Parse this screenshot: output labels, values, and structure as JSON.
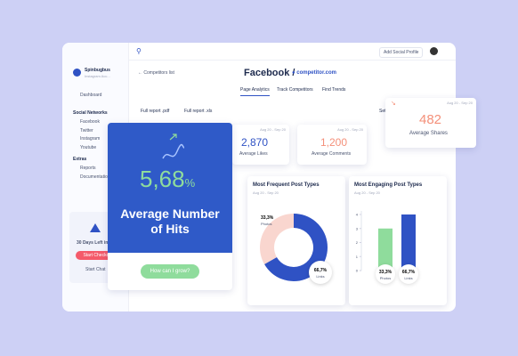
{
  "sidebar": {
    "brand": "Spinbugbus",
    "account": "Instagram Acc...",
    "dashboard": "Dashboard",
    "sections": [
      {
        "title": "Social Networks",
        "items": [
          "Facebook",
          "Twitter",
          "Instagram",
          "Youtube"
        ]
      },
      {
        "title": "Extras",
        "items": [
          "Reports",
          "Documentation"
        ]
      }
    ],
    "trial": "30 Days Left in T...",
    "checkout": "Start Checkout",
    "chat": "Start Chat"
  },
  "topbar": {
    "add_profile": "Add Social Profile"
  },
  "header": {
    "back": "Competitors list",
    "network": "Facebook /",
    "site": "competitor.com",
    "tabs": [
      "Page Analytics",
      "Track Competitors",
      "Find Trends"
    ]
  },
  "actions": [
    "Full report .pdf",
    "Full report .xls",
    "Set"
  ],
  "stats": [
    {
      "date": "Aug 20 - Sep 20",
      "value": "2,870",
      "label": "Average Likes"
    },
    {
      "date": "Aug 20 - Sep 20",
      "value": "1,200",
      "label": "Average Comments"
    },
    {
      "date": "Aug 20 - Sep 20",
      "value": "482",
      "label": "Average Shares"
    }
  ],
  "hits": {
    "value": "5,68",
    "unit": "%",
    "label": "Average Number of Hits",
    "button": "How can I grow?"
  },
  "donut": {
    "title": "Most Frequent Post Types",
    "date": "Aug 20 - Sep 20",
    "slices": [
      {
        "name": "Links",
        "value": 66.7,
        "label": "66,7%",
        "color": "#2f52c4"
      },
      {
        "name": "Photos",
        "value": 33.3,
        "label": "33,3%",
        "color": "#f9d6cf"
      }
    ]
  },
  "bars": {
    "title": "Most Engaging Post Types",
    "date": "Aug 20 - Sep 20",
    "ylim": [
      0,
      4
    ],
    "yticks": [
      0,
      1,
      2,
      3,
      4
    ],
    "items": [
      {
        "name": "Photos",
        "value": 3,
        "caption": "33,3%",
        "color": "#8fdc9c"
      },
      {
        "name": "Links",
        "value": 4,
        "caption": "66,7%",
        "color": "#2f52c4"
      }
    ]
  }
}
